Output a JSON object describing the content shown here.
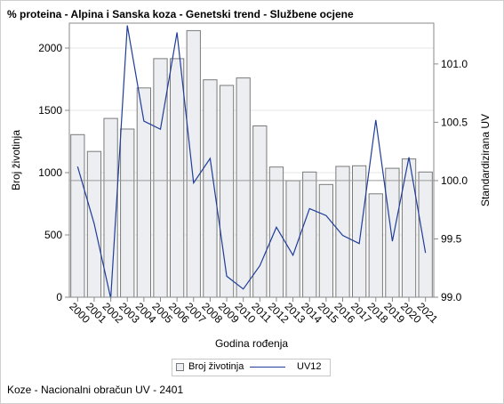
{
  "title": "% proteina - Alpina i Sanska koza - Genetski trend - Službene ocjene",
  "footer": "Koze - Nacionalni obračun UV - 2401",
  "legend": {
    "bar_label": "Broj životinja",
    "line_label": "UV12"
  },
  "colors": {
    "bar_fill": "#eceef1",
    "bar_stroke": "#7a7a7a",
    "line": "#1f3d99",
    "grid": "#e6e6e6",
    "axis": "#8a8a8a",
    "ref": "#9a9a9a"
  },
  "chart_data": {
    "type": "bar",
    "title": "% proteina - Alpina i Sanska koza - Genetski trend - Službene ocjene",
    "xlabel": "Godina rođenja",
    "ylabel": "Broj životinja",
    "y2label": "Standardizirana UV",
    "categories": [
      "2000",
      "2001",
      "2002",
      "2003",
      "2004",
      "2005",
      "2006",
      "2007",
      "2008",
      "2009",
      "2010",
      "2011",
      "2012",
      "2013",
      "2014",
      "2015",
      "2016",
      "2017",
      "2018",
      "2019",
      "2020",
      "2021"
    ],
    "ylim": [
      0,
      2200
    ],
    "yticks": [
      0,
      500,
      1000,
      1500,
      2000
    ],
    "y2lim": [
      99.0,
      101.35
    ],
    "y2ticks": [
      "99.0",
      "99.5",
      "100.0",
      "100.5",
      "101.0"
    ],
    "reference_line_y2": 100.0,
    "grid": true,
    "legend_position": "bottom",
    "series": [
      {
        "name": "Broj životinja",
        "axis": "left",
        "kind": "bar",
        "values": [
          1305,
          1170,
          1435,
          1350,
          1680,
          1915,
          1915,
          2140,
          1745,
          1700,
          1760,
          1375,
          1045,
          935,
          1005,
          905,
          1050,
          1055,
          830,
          1035,
          1110,
          1005
        ]
      },
      {
        "name": "UV12",
        "axis": "right",
        "kind": "line",
        "values": [
          100.12,
          99.63,
          98.99,
          101.33,
          100.51,
          100.44,
          101.27,
          99.98,
          100.19,
          99.18,
          99.07,
          99.27,
          99.6,
          99.36,
          99.76,
          99.7,
          99.53,
          99.46,
          100.52,
          99.48,
          100.2,
          99.38
        ]
      }
    ]
  }
}
